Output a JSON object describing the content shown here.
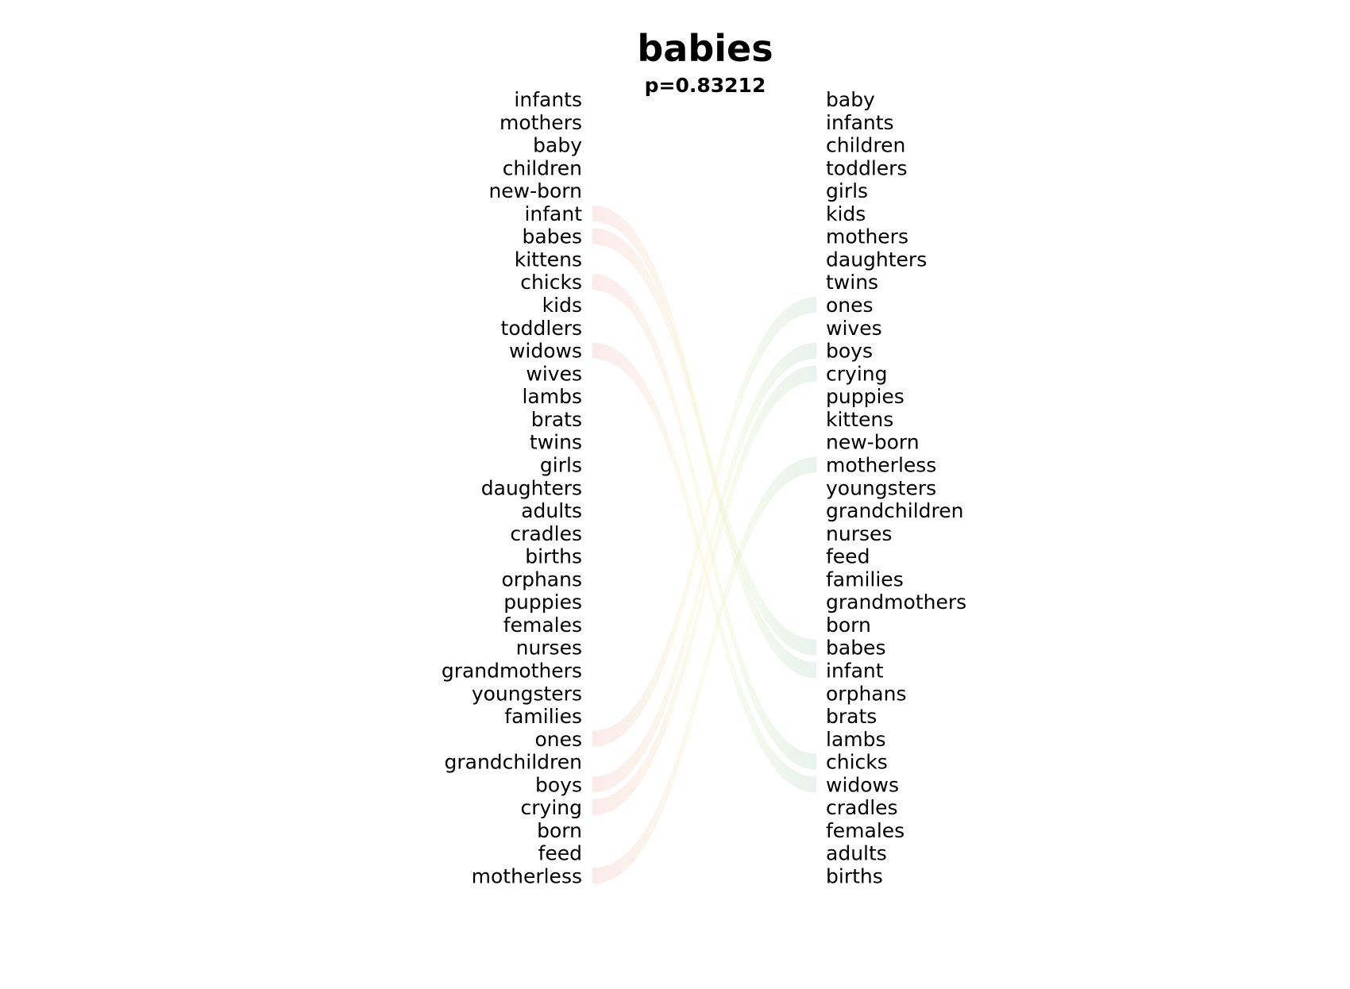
{
  "chart_data": {
    "type": "bump",
    "title": "babies",
    "subtitle": "p=0.83212",
    "left_ranking": [
      "infants",
      "mothers",
      "baby",
      "children",
      "new-born",
      "infant",
      "babes",
      "kittens",
      "chicks",
      "kids",
      "toddlers",
      "widows",
      "wives",
      "lambs",
      "brats",
      "twins",
      "girls",
      "daughters",
      "adults",
      "cradles",
      "births",
      "orphans",
      "puppies",
      "females",
      "nurses",
      "grandmothers",
      "youngsters",
      "families",
      "ones",
      "grandchildren",
      "boys",
      "crying",
      "born",
      "feed",
      "motherless"
    ],
    "right_ranking": [
      "baby",
      "infants",
      "children",
      "toddlers",
      "girls",
      "kids",
      "mothers",
      "daughters",
      "twins",
      "ones",
      "wives",
      "boys",
      "crying",
      "puppies",
      "kittens",
      "new-born",
      "motherless",
      "youngsters",
      "grandchildren",
      "nurses",
      "feed",
      "families",
      "grandmothers",
      "born",
      "babes",
      "infant",
      "orphans",
      "brats",
      "lambs",
      "chicks",
      "widows",
      "cradles",
      "females",
      "adults",
      "births"
    ],
    "highlighted_links": [
      {
        "word": "infant",
        "side_color": "left"
      },
      {
        "word": "babes",
        "side_color": "left"
      },
      {
        "word": "chicks",
        "side_color": "left"
      },
      {
        "word": "widows",
        "side_color": "left"
      },
      {
        "word": "ones",
        "side_color": "right"
      },
      {
        "word": "boys",
        "side_color": "right"
      },
      {
        "word": "crying",
        "side_color": "right"
      },
      {
        "word": "motherless",
        "side_color": "right"
      }
    ],
    "colors": {
      "left_link": "#f7d6d6",
      "right_link": "#d3e6dc",
      "mid_link": "#f4f6d2",
      "text": "#000000"
    }
  }
}
